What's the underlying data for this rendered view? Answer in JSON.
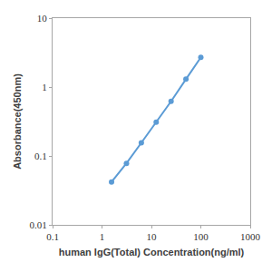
{
  "chart_data": {
    "type": "line",
    "x_label": "human IgG(Total) Concentration(ng/ml)",
    "y_label": "Absorbance(450nm)",
    "x": [
      1.56,
      3.125,
      6.25,
      12.5,
      25,
      50,
      100
    ],
    "values": [
      0.042,
      0.078,
      0.155,
      0.31,
      0.62,
      1.3,
      2.7
    ],
    "color": "#5b9bd5",
    "marker": "circle",
    "line_style": "solid",
    "log": true,
    "grid": false,
    "xlim": [
      0.1,
      1000
    ],
    "xticks": [
      0.1,
      1,
      10,
      100,
      1000
    ],
    "ylim": [
      0.01,
      10
    ],
    "yticks": [
      0.01,
      0.1,
      1,
      10
    ]
  }
}
